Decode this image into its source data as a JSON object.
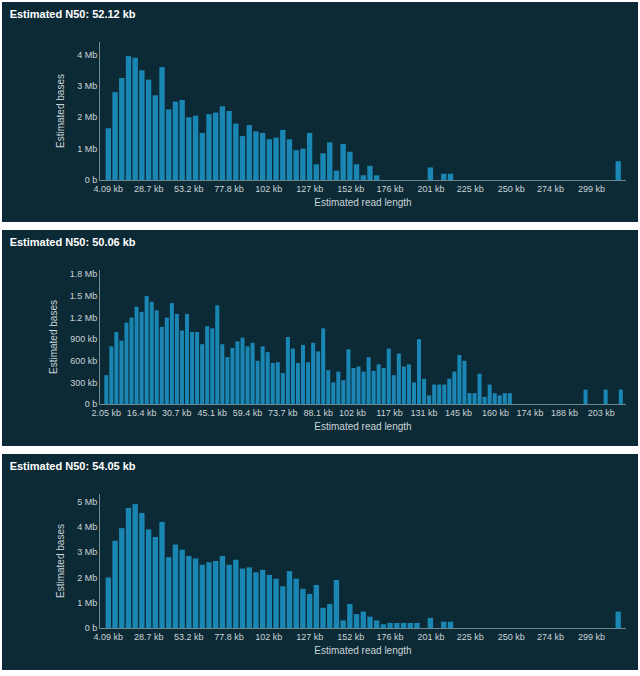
{
  "chart_data": [
    {
      "type": "bar",
      "title": "Estimated N50: 52.12 kb",
      "xlabel": "Estimated read length",
      "ylabel": "Estimated bases",
      "color": "#1a86b3",
      "grid": false,
      "x": [
        4.09,
        8.19,
        12.28,
        16.38,
        20.47,
        24.56,
        28.66,
        32.75,
        36.85,
        40.94,
        45.03,
        49.13,
        53.22,
        57.32,
        61.41,
        65.5,
        69.6,
        73.69,
        77.79,
        81.88,
        85.97,
        90.07,
        94.16,
        98.26,
        102.35,
        106.44,
        110.54,
        114.63,
        118.73,
        122.82,
        126.91,
        131.01,
        135.1,
        139.2,
        143.29,
        147.38,
        151.48,
        155.57,
        159.67,
        163.76,
        167.85,
        200.61,
        208.79,
        212.89,
        315.24
      ],
      "values": [
        1.65,
        2.8,
        3.25,
        3.95,
        3.9,
        3.5,
        3.2,
        2.7,
        3.6,
        2.25,
        2.5,
        2.55,
        2.0,
        2.05,
        1.5,
        2.1,
        2.15,
        2.35,
        2.2,
        1.8,
        1.4,
        1.75,
        1.55,
        1.5,
        1.3,
        1.35,
        1.6,
        1.3,
        0.95,
        1.0,
        1.5,
        0.5,
        0.85,
        1.2,
        0.3,
        1.15,
        0.9,
        0.5,
        0.15,
        0.45,
        0.15,
        0.4,
        0.2,
        0.2,
        0.6
      ],
      "xlim": [
        -1,
        320
      ],
      "xticks": [
        {
          "value": 4.09,
          "label": "4.09 kb"
        },
        {
          "value": 28.7,
          "label": "28.7 kb"
        },
        {
          "value": 53.2,
          "label": "53.2 kb"
        },
        {
          "value": 77.8,
          "label": "77.8 kb"
        },
        {
          "value": 102,
          "label": "102 kb"
        },
        {
          "value": 127,
          "label": "127 kb"
        },
        {
          "value": 152,
          "label": "152 kb"
        },
        {
          "value": 176,
          "label": "176 kb"
        },
        {
          "value": 201,
          "label": "201 kb"
        },
        {
          "value": 225,
          "label": "225 kb"
        },
        {
          "value": 250,
          "label": "250 kb"
        },
        {
          "value": 274,
          "label": "274 kb"
        },
        {
          "value": 299,
          "label": "299 kb"
        }
      ],
      "ylim": [
        0,
        4.4
      ],
      "yticks": [
        {
          "value": 0,
          "label": "0 b"
        },
        {
          "value": 1,
          "label": "1 Mb"
        },
        {
          "value": 2,
          "label": "2 Mb"
        },
        {
          "value": 3,
          "label": "3 Mb"
        },
        {
          "value": 4,
          "label": "4 Mb"
        }
      ]
    },
    {
      "type": "bar",
      "title": "Estimated N50: 50.06 kb",
      "xlabel": "Estimated read length",
      "ylabel": "Estimated bases",
      "color": "#1a86b3",
      "grid": false,
      "x": [
        2.05,
        4.1,
        6.14,
        8.19,
        10.24,
        12.29,
        14.33,
        16.38,
        18.43,
        20.48,
        22.52,
        24.57,
        26.62,
        28.67,
        30.71,
        32.76,
        34.81,
        36.86,
        38.9,
        40.95,
        43.0,
        45.05,
        47.09,
        49.14,
        51.19,
        53.24,
        55.28,
        57.33,
        59.38,
        61.43,
        63.47,
        65.52,
        67.57,
        69.62,
        71.66,
        73.71,
        75.76,
        77.81,
        79.85,
        81.9,
        83.95,
        86.0,
        88.04,
        90.09,
        92.14,
        94.19,
        96.23,
        98.28,
        100.33,
        102.38,
        104.42,
        106.47,
        108.52,
        110.57,
        112.61,
        114.66,
        116.71,
        118.76,
        120.8,
        122.85,
        124.9,
        126.95,
        128.99,
        131.04,
        133.09,
        135.14,
        137.18,
        139.23,
        141.28,
        143.33,
        145.37,
        147.42,
        149.47,
        151.52,
        153.56,
        155.61,
        157.66,
        159.71,
        161.75,
        163.8,
        165.85,
        196.56,
        204.75,
        210.89
      ],
      "values": [
        0.4,
        0.8,
        1.0,
        0.88,
        1.13,
        1.2,
        1.35,
        1.28,
        1.5,
        1.42,
        1.3,
        1.07,
        1.2,
        1.4,
        1.25,
        1.02,
        1.25,
        1.0,
        1.0,
        0.83,
        1.08,
        1.05,
        1.37,
        0.83,
        0.65,
        0.78,
        0.87,
        0.92,
        0.8,
        0.85,
        0.6,
        0.8,
        0.72,
        0.57,
        0.58,
        0.43,
        0.93,
        0.77,
        0.57,
        0.82,
        0.58,
        0.85,
        0.73,
        1.05,
        0.47,
        0.3,
        0.45,
        0.33,
        0.76,
        0.5,
        0.52,
        0.45,
        0.65,
        0.46,
        0.55,
        0.5,
        0.77,
        0.4,
        0.7,
        0.52,
        0.55,
        0.3,
        0.9,
        0.35,
        0.12,
        0.27,
        0.27,
        0.27,
        0.35,
        0.45,
        0.68,
        0.6,
        0.15,
        0.15,
        0.42,
        0.1,
        0.27,
        0.15,
        0.12,
        0.15,
        0.15,
        0.2,
        0.2,
        0.2
      ],
      "xlim": [
        -0.5,
        213
      ],
      "xticks": [
        {
          "value": 2.05,
          "label": "2.05 kb"
        },
        {
          "value": 16.4,
          "label": "16.4 kb"
        },
        {
          "value": 30.7,
          "label": "30.7 kb"
        },
        {
          "value": 45.1,
          "label": "45.1 kb"
        },
        {
          "value": 59.4,
          "label": "59.4 kb"
        },
        {
          "value": 73.7,
          "label": "73.7 kb"
        },
        {
          "value": 88.1,
          "label": "88.1 kb"
        },
        {
          "value": 102,
          "label": "102 kb"
        },
        {
          "value": 117,
          "label": "117 kb"
        },
        {
          "value": 131,
          "label": "131 kb"
        },
        {
          "value": 145,
          "label": "145 kb"
        },
        {
          "value": 160,
          "label": "160 kb"
        },
        {
          "value": 174,
          "label": "174 kb"
        },
        {
          "value": 188,
          "label": "188 kb"
        },
        {
          "value": 203,
          "label": "203 kb"
        }
      ],
      "ylim": [
        0,
        1.86
      ],
      "yticks": [
        {
          "value": 0,
          "label": "0 b"
        },
        {
          "value": 0.3,
          "label": "300 kb"
        },
        {
          "value": 0.6,
          "label": "600 kb"
        },
        {
          "value": 0.9,
          "label": "900 kb"
        },
        {
          "value": 1.2,
          "label": "1.2 Mb"
        },
        {
          "value": 1.5,
          "label": "1.5 Mb"
        },
        {
          "value": 1.8,
          "label": "1.8 Mb"
        }
      ]
    },
    {
      "type": "bar",
      "title": "Estimated N50: 54.05 kb",
      "xlabel": "Estimated read length",
      "ylabel": "Estimated bases",
      "color": "#1a86b3",
      "grid": false,
      "x": [
        4.09,
        8.19,
        12.28,
        16.38,
        20.47,
        24.56,
        28.66,
        32.75,
        36.85,
        40.94,
        45.03,
        49.13,
        53.22,
        57.32,
        61.41,
        65.5,
        69.6,
        73.69,
        77.79,
        81.88,
        85.97,
        90.07,
        94.16,
        98.26,
        102.35,
        106.44,
        110.54,
        114.63,
        118.73,
        122.82,
        126.91,
        131.01,
        135.1,
        139.2,
        143.29,
        147.38,
        151.48,
        155.57,
        159.67,
        163.76,
        167.85,
        171.95,
        176.04,
        180.14,
        184.23,
        188.32,
        192.42,
        200.61,
        208.79,
        212.89,
        315.24
      ],
      "values": [
        2.0,
        3.45,
        3.95,
        4.75,
        4.9,
        4.55,
        3.9,
        3.6,
        4.2,
        2.8,
        3.3,
        3.1,
        2.85,
        2.75,
        2.5,
        2.6,
        2.65,
        2.85,
        2.5,
        2.7,
        2.35,
        2.4,
        2.2,
        2.3,
        2.1,
        1.95,
        1.65,
        2.25,
        1.95,
        1.55,
        1.35,
        1.7,
        0.8,
        0.95,
        1.9,
        0.3,
        0.95,
        0.55,
        0.65,
        0.45,
        0.3,
        0.15,
        0.2,
        0.2,
        0.2,
        0.2,
        0.2,
        0.4,
        0.25,
        0.25,
        0.65
      ],
      "xlim": [
        -1,
        320
      ],
      "xticks": [
        {
          "value": 4.09,
          "label": "4.09 kb"
        },
        {
          "value": 28.7,
          "label": "28.7 kb"
        },
        {
          "value": 53.2,
          "label": "53.2 kb"
        },
        {
          "value": 77.8,
          "label": "77.8 kb"
        },
        {
          "value": 102,
          "label": "102 kb"
        },
        {
          "value": 127,
          "label": "127 kb"
        },
        {
          "value": 152,
          "label": "152 kb"
        },
        {
          "value": 176,
          "label": "176 kb"
        },
        {
          "value": 201,
          "label": "201 kb"
        },
        {
          "value": 225,
          "label": "225 kb"
        },
        {
          "value": 250,
          "label": "250 kb"
        },
        {
          "value": 274,
          "label": "274 kb"
        },
        {
          "value": 299,
          "label": "299 kb"
        }
      ],
      "ylim": [
        0,
        5.3
      ],
      "yticks": [
        {
          "value": 0,
          "label": "0 b"
        },
        {
          "value": 1,
          "label": "1 Mb"
        },
        {
          "value": 2,
          "label": "2 Mb"
        },
        {
          "value": 3,
          "label": "3 Mb"
        },
        {
          "value": 4,
          "label": "4 Mb"
        },
        {
          "value": 5,
          "label": "5 Mb"
        }
      ]
    }
  ]
}
